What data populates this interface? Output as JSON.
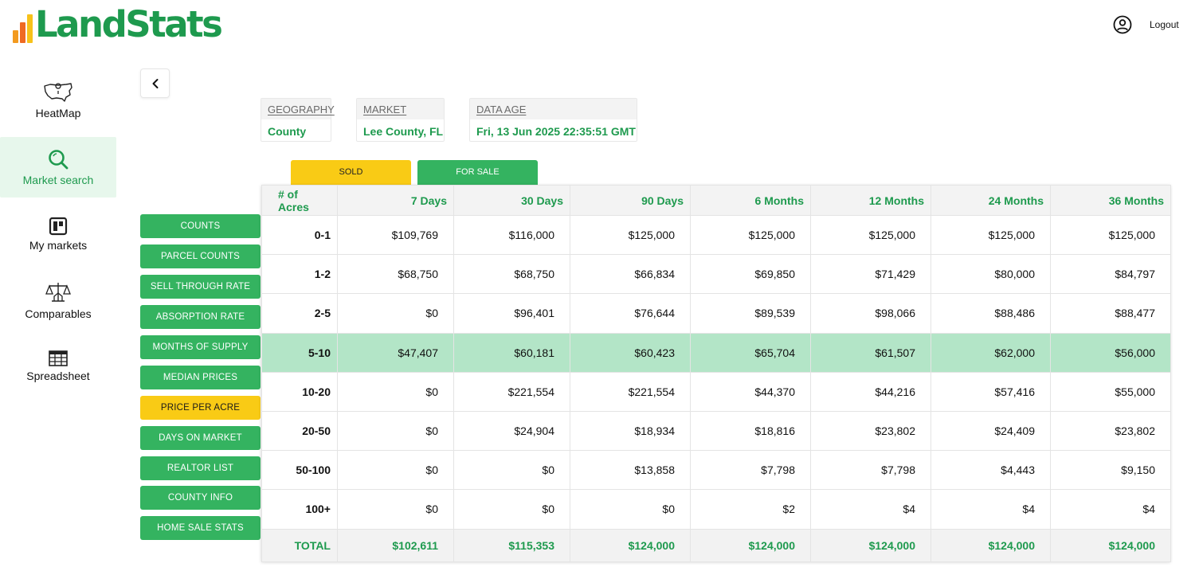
{
  "app": {
    "logo_text": "LandStats",
    "logout_label": "Logout",
    "colors": {
      "brand_green": "#1e9a4e",
      "button_green": "#34b360",
      "accent_yellow": "#f9cb15",
      "highlight_row": "#b3e5c7"
    }
  },
  "nav": {
    "items": [
      {
        "label": "HeatMap",
        "icon": "usa-map-icon"
      },
      {
        "label": "Market search",
        "icon": "search-icon",
        "active": true
      },
      {
        "label": "My markets",
        "icon": "dashboard-icon"
      },
      {
        "label": "Comparables",
        "icon": "scale-icon"
      },
      {
        "label": "Spreadsheet",
        "icon": "spreadsheet-icon"
      }
    ]
  },
  "info": {
    "geography": {
      "label": "GEOGRAPHY",
      "value": "County"
    },
    "market": {
      "label": "MARKET",
      "value": "Lee County, FL"
    },
    "data_age": {
      "label": "DATA AGE",
      "value": "Fri, 13 Jun 2025 22:35:51 GMT"
    }
  },
  "tabs": {
    "sold": "SOLD",
    "for_sale": "FOR SALE"
  },
  "metrics": [
    "COUNTS",
    "PARCEL COUNTS",
    "SELL THROUGH RATE",
    "ABSORPTION RATE",
    "MONTHS OF SUPPLY",
    "MEDIAN PRICES",
    "PRICE PER ACRE",
    "DAYS ON MARKET",
    "REALTOR LIST",
    "COUNTY INFO",
    "HOME SALE STATS"
  ],
  "active_metric": "PRICE PER ACRE",
  "table": {
    "headers": [
      "# of Acres",
      "7 Days",
      "30 Days",
      "90 Days",
      "6 Months",
      "12 Months",
      "24 Months",
      "36 Months"
    ],
    "rows": [
      [
        "0-1",
        "$109,769",
        "$116,000",
        "$125,000",
        "$125,000",
        "$125,000",
        "$125,000",
        "$125,000"
      ],
      [
        "1-2",
        "$68,750",
        "$68,750",
        "$66,834",
        "$69,850",
        "$71,429",
        "$80,000",
        "$84,797"
      ],
      [
        "2-5",
        "$0",
        "$96,401",
        "$76,644",
        "$89,539",
        "$98,066",
        "$88,486",
        "$88,477"
      ],
      [
        "5-10",
        "$47,407",
        "$60,181",
        "$60,423",
        "$65,704",
        "$61,507",
        "$62,000",
        "$56,000"
      ],
      [
        "10-20",
        "$0",
        "$221,554",
        "$221,554",
        "$44,370",
        "$44,216",
        "$57,416",
        "$55,000"
      ],
      [
        "20-50",
        "$0",
        "$24,904",
        "$18,934",
        "$18,816",
        "$23,802",
        "$24,409",
        "$23,802"
      ],
      [
        "50-100",
        "$0",
        "$0",
        "$13,858",
        "$7,798",
        "$7,798",
        "$4,443",
        "$9,150"
      ],
      [
        "100+",
        "$0",
        "$0",
        "$0",
        "$2",
        "$4",
        "$4",
        "$4"
      ]
    ],
    "highlighted_row": "5-10",
    "total": [
      "TOTAL",
      "$102,611",
      "$115,353",
      "$124,000",
      "$124,000",
      "$124,000",
      "$124,000",
      "$124,000"
    ]
  }
}
